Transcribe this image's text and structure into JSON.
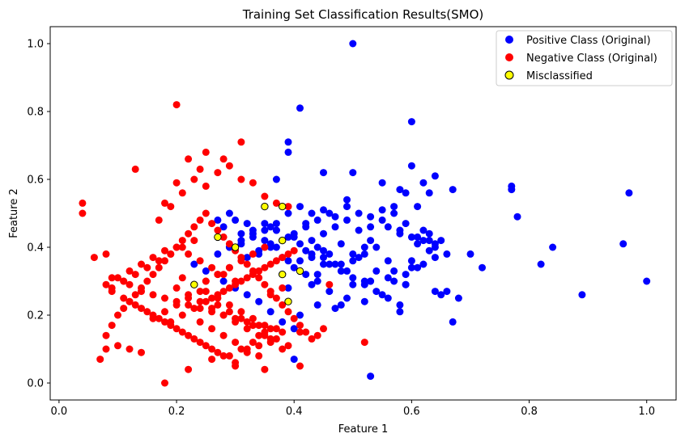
{
  "chart_data": {
    "type": "scatter",
    "title": "Training Set Classification Results(SMO)",
    "xlabel": "Feature 1",
    "ylabel": "Feature 2",
    "xlim": [
      -0.015,
      1.05
    ],
    "ylim": [
      -0.05,
      1.05
    ],
    "xticks": [
      "0.0",
      "0.2",
      "0.4",
      "0.6",
      "0.8",
      "1.0"
    ],
    "yticks": [
      "0.0",
      "0.2",
      "0.4",
      "0.6",
      "0.8",
      "1.0"
    ],
    "grid": false,
    "legend_position": "top-right",
    "series": [
      {
        "name": "Positive Class (Original)",
        "color": "#0000ff",
        "marker": "circle",
        "x": [
          0.5,
          0.41,
          0.6,
          0.39,
          0.39,
          0.49,
          0.45,
          0.5,
          0.55,
          0.37,
          0.64,
          0.62,
          0.63,
          0.6,
          0.61,
          0.58,
          0.59,
          0.67,
          0.77,
          0.77,
          0.97,
          0.78,
          0.63,
          0.52,
          0.61,
          0.6,
          0.56,
          0.57,
          0.59,
          0.62,
          0.66,
          0.67,
          0.72,
          0.64,
          0.96,
          0.84,
          0.82,
          0.89,
          1.0,
          0.7,
          0.68,
          0.65,
          0.64,
          0.58,
          0.59,
          0.53,
          0.55,
          0.5,
          0.47,
          0.46,
          0.45,
          0.43,
          0.41,
          0.44,
          0.48,
          0.51,
          0.54,
          0.53,
          0.56,
          0.57,
          0.59,
          0.6,
          0.61,
          0.62,
          0.63,
          0.64,
          0.65,
          0.53,
          0.52,
          0.5,
          0.49,
          0.48,
          0.46,
          0.44,
          0.42,
          0.41,
          0.4,
          0.39,
          0.38,
          0.37,
          0.36,
          0.35,
          0.34,
          0.33,
          0.32,
          0.31,
          0.3,
          0.29,
          0.28,
          0.27,
          0.36,
          0.37,
          0.38,
          0.4,
          0.42,
          0.43,
          0.45,
          0.47,
          0.49,
          0.51,
          0.53,
          0.55,
          0.57,
          0.58,
          0.6,
          0.62,
          0.64,
          0.66,
          0.58,
          0.56,
          0.54,
          0.52,
          0.5,
          0.48,
          0.46,
          0.44,
          0.42,
          0.43,
          0.45,
          0.47,
          0.49,
          0.51,
          0.53,
          0.55,
          0.57,
          0.59,
          0.61,
          0.63,
          0.52,
          0.49,
          0.47,
          0.45,
          0.43,
          0.41,
          0.39,
          0.37,
          0.35,
          0.33,
          0.31,
          0.29,
          0.32,
          0.34,
          0.36,
          0.38,
          0.4,
          0.42,
          0.44,
          0.46,
          0.39,
          0.41,
          0.4,
          0.38,
          0.36,
          0.34,
          0.32,
          0.3,
          0.28,
          0.25,
          0.23,
          0.27,
          0.29,
          0.31,
          0.33,
          0.35,
          0.37,
          0.39,
          0.41,
          0.43,
          0.45,
          0.48,
          0.5,
          0.52,
          0.54,
          0.56,
          0.58,
          0.53,
          0.44,
          0.4,
          0.43
        ],
        "y": [
          1.0,
          0.81,
          0.77,
          0.71,
          0.68,
          0.54,
          0.62,
          0.62,
          0.59,
          0.6,
          0.61,
          0.59,
          0.56,
          0.64,
          0.52,
          0.57,
          0.56,
          0.57,
          0.58,
          0.57,
          0.56,
          0.49,
          0.42,
          0.24,
          0.34,
          0.34,
          0.36,
          0.3,
          0.29,
          0.35,
          0.27,
          0.18,
          0.34,
          0.37,
          0.41,
          0.4,
          0.35,
          0.26,
          0.3,
          0.38,
          0.25,
          0.26,
          0.27,
          0.21,
          0.29,
          0.3,
          0.26,
          0.29,
          0.22,
          0.35,
          0.39,
          0.38,
          0.36,
          0.32,
          0.41,
          0.37,
          0.33,
          0.3,
          0.31,
          0.33,
          0.32,
          0.36,
          0.41,
          0.42,
          0.44,
          0.4,
          0.42,
          0.42,
          0.4,
          0.38,
          0.25,
          0.23,
          0.27,
          0.3,
          0.32,
          0.33,
          0.34,
          0.36,
          0.37,
          0.4,
          0.41,
          0.42,
          0.39,
          0.45,
          0.47,
          0.44,
          0.48,
          0.5,
          0.46,
          0.48,
          0.46,
          0.45,
          0.42,
          0.43,
          0.47,
          0.5,
          0.51,
          0.49,
          0.52,
          0.45,
          0.46,
          0.48,
          0.5,
          0.45,
          0.43,
          0.45,
          0.41,
          0.38,
          0.44,
          0.46,
          0.4,
          0.38,
          0.36,
          0.35,
          0.38,
          0.4,
          0.39,
          0.42,
          0.44,
          0.46,
          0.48,
          0.5,
          0.49,
          0.51,
          0.52,
          0.47,
          0.43,
          0.39,
          0.3,
          0.33,
          0.35,
          0.37,
          0.38,
          0.41,
          0.43,
          0.45,
          0.47,
          0.44,
          0.42,
          0.4,
          0.37,
          0.38,
          0.4,
          0.42,
          0.44,
          0.46,
          0.48,
          0.5,
          0.28,
          0.2,
          0.16,
          0.18,
          0.21,
          0.24,
          0.26,
          0.28,
          0.3,
          0.33,
          0.35,
          0.38,
          0.4,
          0.41,
          0.43,
          0.45,
          0.47,
          0.5,
          0.52,
          0.37,
          0.35,
          0.33,
          0.31,
          0.29,
          0.27,
          0.25,
          0.23,
          0.02,
          0.23,
          0.07,
          0.29
        ]
      },
      {
        "name": "Negative Class (Original)",
        "color": "#ff0000",
        "marker": "circle",
        "x": [
          0.2,
          0.31,
          0.25,
          0.28,
          0.24,
          0.13,
          0.04,
          0.04,
          0.06,
          0.08,
          0.09,
          0.11,
          0.12,
          0.14,
          0.16,
          0.18,
          0.2,
          0.22,
          0.24,
          0.26,
          0.28,
          0.3,
          0.32,
          0.34,
          0.36,
          0.38,
          0.22,
          0.2,
          0.18,
          0.17,
          0.19,
          0.21,
          0.23,
          0.25,
          0.27,
          0.29,
          0.31,
          0.33,
          0.35,
          0.37,
          0.39,
          0.41,
          0.46,
          0.52,
          0.41,
          0.35,
          0.3,
          0.26,
          0.22,
          0.18,
          0.14,
          0.12,
          0.1,
          0.08,
          0.07,
          0.08,
          0.09,
          0.1,
          0.11,
          0.12,
          0.13,
          0.14,
          0.15,
          0.16,
          0.17,
          0.18,
          0.19,
          0.2,
          0.21,
          0.22,
          0.23,
          0.24,
          0.25,
          0.26,
          0.27,
          0.28,
          0.29,
          0.3,
          0.31,
          0.32,
          0.33,
          0.34,
          0.35,
          0.36,
          0.37,
          0.38,
          0.39,
          0.4,
          0.41,
          0.42,
          0.43,
          0.44,
          0.45,
          0.3,
          0.28,
          0.26,
          0.24,
          0.22,
          0.2,
          0.18,
          0.16,
          0.14,
          0.12,
          0.1,
          0.08,
          0.09,
          0.11,
          0.13,
          0.15,
          0.17,
          0.19,
          0.21,
          0.23,
          0.25,
          0.27,
          0.29,
          0.31,
          0.33,
          0.35,
          0.37,
          0.19,
          0.21,
          0.23,
          0.25,
          0.27,
          0.29,
          0.31,
          0.33,
          0.35,
          0.37,
          0.39,
          0.2,
          0.22,
          0.24,
          0.26,
          0.28,
          0.3,
          0.32,
          0.34,
          0.36,
          0.38,
          0.25,
          0.27,
          0.29,
          0.31,
          0.33,
          0.35,
          0.23,
          0.21,
          0.19,
          0.17,
          0.15,
          0.13,
          0.11,
          0.09,
          0.12,
          0.14,
          0.16,
          0.18,
          0.2,
          0.22,
          0.24,
          0.26,
          0.28,
          0.3,
          0.32,
          0.34,
          0.36,
          0.26,
          0.28,
          0.3,
          0.32,
          0.34,
          0.36,
          0.38,
          0.4,
          0.24,
          0.22,
          0.2,
          0.18,
          0.16,
          0.27,
          0.29,
          0.31,
          0.33,
          0.35,
          0.37,
          0.39,
          0.21,
          0.23,
          0.25,
          0.27,
          0.29,
          0.31,
          0.33,
          0.35,
          0.24,
          0.26,
          0.28,
          0.3,
          0.32,
          0.34,
          0.36,
          0.38,
          0.25,
          0.27,
          0.29
        ],
        "y": [
          0.82,
          0.71,
          0.68,
          0.66,
          0.63,
          0.63,
          0.53,
          0.5,
          0.37,
          0.38,
          0.31,
          0.3,
          0.29,
          0.27,
          0.26,
          0.25,
          0.24,
          0.23,
          0.22,
          0.21,
          0.2,
          0.19,
          0.18,
          0.17,
          0.16,
          0.15,
          0.66,
          0.59,
          0.53,
          0.48,
          0.52,
          0.56,
          0.6,
          0.58,
          0.62,
          0.64,
          0.6,
          0.59,
          0.55,
          0.53,
          0.52,
          0.15,
          0.29,
          0.12,
          0.05,
          0.04,
          0.05,
          0.07,
          0.04,
          0.0,
          0.09,
          0.1,
          0.11,
          0.1,
          0.07,
          0.14,
          0.17,
          0.2,
          0.22,
          0.24,
          0.26,
          0.28,
          0.3,
          0.32,
          0.34,
          0.36,
          0.38,
          0.4,
          0.42,
          0.44,
          0.46,
          0.48,
          0.5,
          0.47,
          0.45,
          0.43,
          0.41,
          0.39,
          0.37,
          0.35,
          0.33,
          0.31,
          0.29,
          0.27,
          0.25,
          0.23,
          0.21,
          0.19,
          0.17,
          0.15,
          0.13,
          0.14,
          0.16,
          0.3,
          0.32,
          0.34,
          0.36,
          0.38,
          0.4,
          0.39,
          0.37,
          0.35,
          0.33,
          0.31,
          0.29,
          0.27,
          0.25,
          0.23,
          0.21,
          0.19,
          0.17,
          0.15,
          0.13,
          0.11,
          0.09,
          0.08,
          0.1,
          0.12,
          0.14,
          0.16,
          0.18,
          0.2,
          0.22,
          0.24,
          0.26,
          0.28,
          0.3,
          0.32,
          0.34,
          0.36,
          0.38,
          0.28,
          0.26,
          0.24,
          0.22,
          0.2,
          0.18,
          0.16,
          0.14,
          0.12,
          0.1,
          0.3,
          0.32,
          0.34,
          0.36,
          0.38,
          0.4,
          0.42,
          0.4,
          0.38,
          0.36,
          0.34,
          0.32,
          0.3,
          0.28,
          0.24,
          0.22,
          0.2,
          0.18,
          0.16,
          0.14,
          0.12,
          0.1,
          0.08,
          0.06,
          0.09,
          0.11,
          0.13,
          0.25,
          0.27,
          0.29,
          0.31,
          0.33,
          0.35,
          0.37,
          0.39,
          0.27,
          0.25,
          0.23,
          0.21,
          0.19,
          0.23,
          0.21,
          0.19,
          0.17,
          0.15,
          0.13,
          0.11,
          0.31,
          0.29,
          0.27,
          0.25,
          0.23,
          0.21,
          0.19,
          0.17,
          0.18,
          0.16,
          0.14,
          0.12,
          0.1,
          0.08,
          0.26,
          0.28,
          0.3,
          0.32,
          0.34
        ]
      },
      {
        "name": "Misclassified",
        "color": "#ffff00",
        "edgecolor": "#000000",
        "marker": "circle",
        "x": [
          0.35,
          0.38,
          0.27,
          0.3,
          0.38,
          0.23,
          0.38,
          0.41,
          0.39
        ],
        "y": [
          0.52,
          0.52,
          0.43,
          0.4,
          0.42,
          0.29,
          0.32,
          0.33,
          0.24
        ]
      }
    ]
  }
}
